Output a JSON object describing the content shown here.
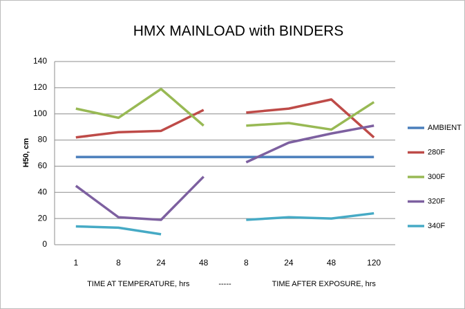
{
  "chart_data": {
    "type": "line",
    "title": "HMX MAINLOAD with BINDERS",
    "ylabel": "H50, cm",
    "x_groups": [
      {
        "name": "TIME AT TEMPERATURE,  hrs",
        "categories": [
          "1",
          "8",
          "24",
          "48"
        ]
      },
      {
        "name": "TIME AFTER EXPOSURE, hrs",
        "categories": [
          "8",
          "24",
          "48",
          "120"
        ]
      }
    ],
    "group_separator": "-----",
    "reference": {
      "name": "AMBIENT",
      "color": "#4a7ebb",
      "value": 67
    },
    "series": [
      {
        "name": "280F",
        "color": "#be4b48",
        "values": [
          [
            82,
            86,
            87,
            103
          ],
          [
            101,
            104,
            111,
            82
          ]
        ]
      },
      {
        "name": "300F",
        "color": "#98b954",
        "values": [
          [
            104,
            97,
            119,
            91
          ],
          [
            91,
            93,
            88,
            109
          ]
        ]
      },
      {
        "name": "320F",
        "color": "#7d60a0",
        "values": [
          [
            45,
            21,
            19,
            52
          ],
          [
            63,
            78,
            85,
            91
          ]
        ]
      },
      {
        "name": "340F",
        "color": "#46aac5",
        "values": [
          [
            14,
            13,
            8,
            null
          ],
          [
            19,
            21,
            20,
            24
          ]
        ]
      }
    ],
    "ylim": [
      0,
      140
    ],
    "yticks": [
      0,
      20,
      40,
      60,
      80,
      100,
      120,
      140
    ],
    "grid": true
  }
}
